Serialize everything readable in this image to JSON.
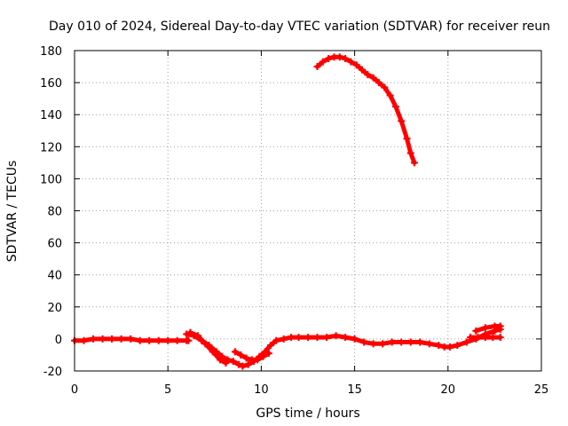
{
  "chart_data": {
    "type": "scatter",
    "title": "Day 010 of 2024, Sidereal Day-to-day VTEC variation (SDTVAR) for receiver reun",
    "xlabel": "GPS time / hours",
    "ylabel": "SDTVAR / TECUs",
    "xlim": [
      0,
      25
    ],
    "ylim": [
      -20,
      180
    ],
    "xticks": [
      0,
      5,
      10,
      15,
      20,
      25
    ],
    "yticks": [
      -20,
      0,
      20,
      40,
      60,
      80,
      100,
      120,
      140,
      160,
      180
    ],
    "grid": true,
    "marker": "plus",
    "series_color": "#ff0000",
    "series": [
      {
        "x": [
          0.0,
          0.5,
          1.0,
          1.5,
          2.0,
          2.5,
          3.0,
          3.5,
          4.0,
          4.5,
          5.0,
          5.5,
          6.0,
          6.1
        ],
        "y": [
          -1,
          -1,
          0,
          0,
          0,
          0,
          0,
          -1,
          -1,
          -1,
          -1,
          -1,
          -1,
          -1
        ]
      },
      {
        "x": [
          6.0,
          6.4,
          6.8,
          7.2,
          7.6,
          7.9,
          8.2,
          8.5,
          8.8,
          9.0,
          9.3,
          9.6,
          9.9,
          10.2,
          10.5,
          10.8,
          11.2,
          11.6,
          12.0,
          12.5,
          13.0,
          13.5,
          14.0,
          14.5,
          15.0,
          15.5,
          16.0,
          16.5,
          17.0,
          17.5,
          18.0,
          18.5,
          19.0,
          19.5,
          19.8,
          20.1,
          20.5,
          21.0,
          21.5,
          22.0,
          22.5,
          22.8
        ],
        "y": [
          3,
          2,
          -1,
          -4,
          -8,
          -11,
          -13,
          -14,
          -16,
          -17,
          -16,
          -14,
          -11,
          -8,
          -4,
          -1,
          0,
          1,
          1,
          1,
          1,
          1,
          2,
          1,
          0,
          -2,
          -3,
          -3,
          -2,
          -2,
          -2,
          -2,
          -3,
          -4,
          -5,
          -5,
          -4,
          -2,
          0,
          3,
          5,
          6
        ]
      },
      {
        "x": [
          6.2,
          6.6,
          7.0,
          7.4,
          7.8,
          8.1
        ],
        "y": [
          4,
          2,
          -3,
          -8,
          -13,
          -15
        ]
      },
      {
        "x": [
          8.6,
          8.9,
          9.2,
          9.5,
          9.8,
          10.1,
          10.4
        ],
        "y": [
          -8,
          -10,
          -12,
          -13,
          -13,
          -11,
          -9
        ]
      },
      {
        "x": [
          21.2,
          21.6,
          22.0,
          22.4,
          22.8
        ],
        "y": [
          1,
          1,
          1,
          1,
          1
        ]
      },
      {
        "x": [
          21.5,
          22.0,
          22.5,
          22.8
        ],
        "y": [
          5,
          7,
          8,
          8
        ]
      },
      {
        "x": [
          13.0,
          13.3,
          13.6,
          13.9,
          14.2,
          14.5,
          14.8,
          15.1,
          15.4,
          15.7,
          16.0,
          16.3,
          16.6,
          16.9,
          17.2,
          17.5,
          17.8,
          18.0,
          18.2
        ],
        "y": [
          170,
          173,
          175,
          176,
          176,
          175,
          173,
          171,
          168,
          165,
          163,
          160,
          157,
          152,
          145,
          136,
          125,
          116,
          110
        ]
      }
    ]
  }
}
